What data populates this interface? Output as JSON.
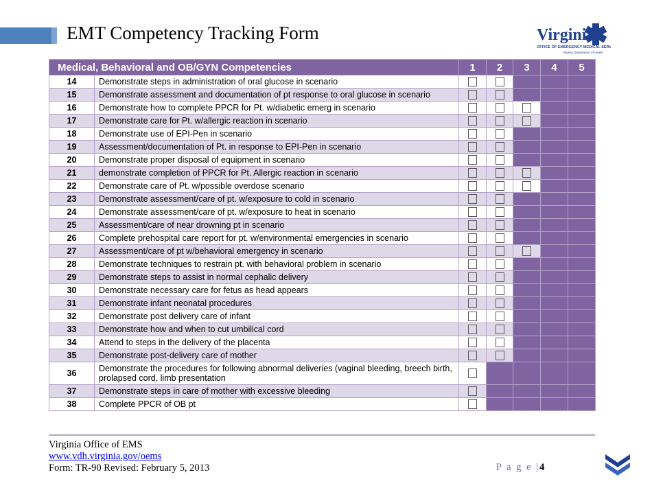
{
  "header": {
    "title": "EMT Competency Tracking Form",
    "logo_text": "Virginia",
    "logo_sub": "OFFICE OF EMERGENCY MEDICAL SERVICES",
    "logo_sub2": "Virginia Department of Health"
  },
  "table": {
    "heading": "Medical, Behavioral and OB/GYN Competencies",
    "columns": [
      "1",
      "2",
      "3",
      "4",
      "5"
    ],
    "rows": [
      {
        "num": "14",
        "text": "Demonstrate steps in administration of oral glucose in scenario",
        "boxes": 2
      },
      {
        "num": "15",
        "text": "Demonstrate assessment and documentation of pt response to oral glucose in scenario",
        "boxes": 2
      },
      {
        "num": "16",
        "text": "Demonstrate how to complete PPCR for Pt. w/diabetic emerg in scenario",
        "boxes": 3
      },
      {
        "num": "17",
        "text": "Demonstrate care for Pt. w/allergic reaction in scenario",
        "boxes": 3
      },
      {
        "num": "18",
        "text": "Demonstrate use of EPI-Pen in scenario",
        "boxes": 2
      },
      {
        "num": "19",
        "text": "Assessment/documentation of Pt. in response to EPI-Pen in scenario",
        "boxes": 2
      },
      {
        "num": "20",
        "text": "Demonstrate proper disposal of equipment in scenario",
        "boxes": 2
      },
      {
        "num": "21",
        "text": "demonstrate completion of PPCR for Pt. Allergic reaction in scenario",
        "boxes": 3
      },
      {
        "num": "22",
        "text": "Demonstrate care of Pt. w/possible overdose scenario",
        "boxes": 3
      },
      {
        "num": "23",
        "text": "Demonstrate assessment/care of pt. w/exposure to cold in scenario",
        "boxes": 2
      },
      {
        "num": "24",
        "text": "Demonstrate assessment/care of pt. w/exposure to heat in scenario",
        "boxes": 2
      },
      {
        "num": "25",
        "text": "Assessment/care of near drowning pt in scenario",
        "boxes": 2
      },
      {
        "num": "26",
        "text": "Complete prehospital care report for pt. w/environmental emergencies in scenario",
        "boxes": 2
      },
      {
        "num": "27",
        "text": "Assessment/care of pt w/behavioral emergency in scenario",
        "boxes": 3
      },
      {
        "num": "28",
        "text": "Demonstrate techniques to restrain pt. with behavioral problem in scenario",
        "boxes": 2
      },
      {
        "num": "29",
        "text": "Demonstrate steps to assist in normal cephalic delivery",
        "boxes": 2
      },
      {
        "num": "30",
        "text": "Demonstrate necessary care for fetus as head appears",
        "boxes": 2
      },
      {
        "num": "31",
        "text": "Demonstrate infant neonatal procedures",
        "boxes": 2
      },
      {
        "num": "32",
        "text": "Demonstrate post delivery care of infant",
        "boxes": 2
      },
      {
        "num": "33",
        "text": "Demonstrate how and when to cut umbilical cord",
        "boxes": 2
      },
      {
        "num": "34",
        "text": "Attend to steps in the delivery of the placenta",
        "boxes": 2
      },
      {
        "num": "35",
        "text": "Demonstrate post-delivery care of mother",
        "boxes": 2
      },
      {
        "num": "36",
        "text": "Demonstrate the procedures for following abnormal deliveries (vaginal bleeding, breech birth, prolapsed cord, limb presentation",
        "boxes": 1
      },
      {
        "num": "37",
        "text": "Demonstrate steps in care of mother with excessive bleeding",
        "boxes": 1
      },
      {
        "num": "38",
        "text": "Complete  PPCR of OB pt",
        "boxes": 1
      }
    ]
  },
  "footer": {
    "org": "Virginia Office of EMS",
    "link": "www.vdh.virginia.gov/oems",
    "form": "Form: TR-90 Revised:  February 5, 2013",
    "page_label": "P a g e  |",
    "page_num": "4"
  },
  "colors": {
    "accent": "#8064a2",
    "row_alt": "#dfd8e8",
    "title_bar": "#4f81bd"
  }
}
